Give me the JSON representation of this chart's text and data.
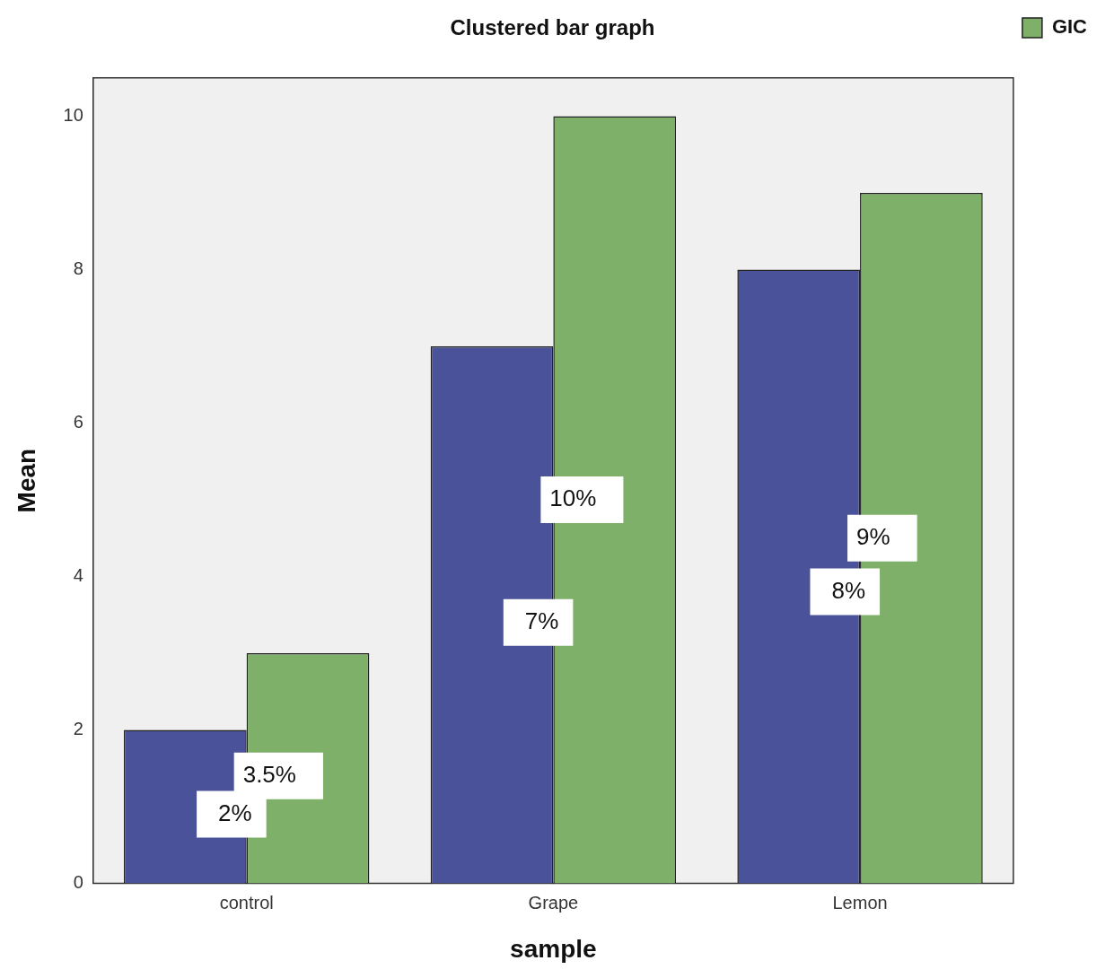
{
  "chart_data": {
    "type": "bar",
    "title": "Clustered bar graph",
    "xlabel": "sample",
    "ylabel": "Mean",
    "categories": [
      "control",
      "Grape",
      "Lemon"
    ],
    "series": [
      {
        "color": "#4a5399",
        "values": [
          2,
          7,
          8
        ]
      },
      {
        "name": "GIC",
        "color": "#7fb069",
        "values": [
          3,
          10,
          9
        ]
      }
    ],
    "annotations": [
      {
        "text": "2%",
        "x": "control",
        "y": 0.9
      },
      {
        "text": "3.5%",
        "x": "control",
        "y": 1.4
      },
      {
        "text": "7%",
        "x": "Grape",
        "y": 3.4
      },
      {
        "text": "10%",
        "x": "Grape",
        "y": 5
      },
      {
        "text": "8%",
        "x": "Lemon",
        "y": 3.8
      },
      {
        "text": "9%",
        "x": "Lemon",
        "y": 4.5
      }
    ],
    "ylim": [
      0,
      10.5
    ],
    "yticks": [
      0,
      2,
      4,
      6,
      8,
      10
    ],
    "grid": false,
    "legend": "right"
  }
}
